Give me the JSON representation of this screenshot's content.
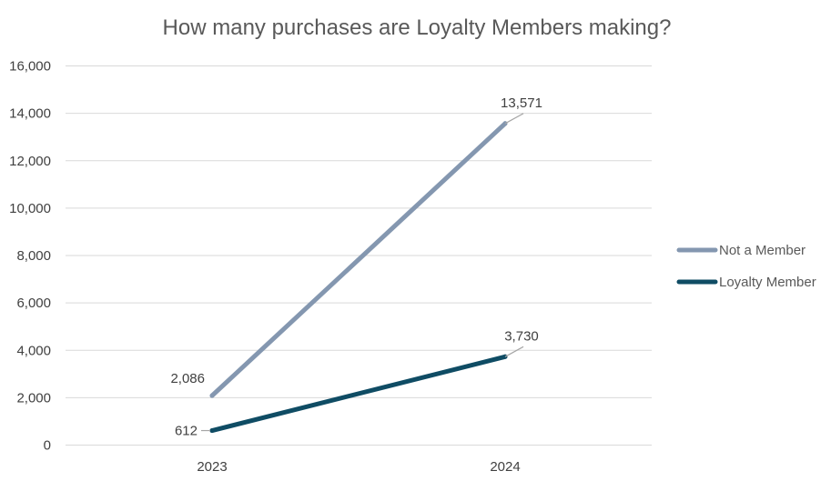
{
  "chart_data": {
    "type": "line",
    "title": "How many purchases are Loyalty Members making?",
    "categories": [
      "2023",
      "2024"
    ],
    "series": [
      {
        "name": "Not a Member",
        "values": [
          2086,
          13571
        ],
        "labels": [
          "2,086",
          "13,571"
        ],
        "color": "#8497b0"
      },
      {
        "name": "Loyalty Member",
        "values": [
          612,
          3730
        ],
        "labels": [
          "612",
          "3,730"
        ],
        "color": "#0f4c64"
      }
    ],
    "ylim": [
      0,
      16000
    ],
    "yticks": [
      0,
      2000,
      4000,
      6000,
      8000,
      10000,
      12000,
      14000,
      16000
    ],
    "ytick_labels": [
      "0",
      "2,000",
      "4,000",
      "6,000",
      "8,000",
      "10,000",
      "12,000",
      "14,000",
      "16,000"
    ],
    "grid": true,
    "legend_position": "right"
  }
}
